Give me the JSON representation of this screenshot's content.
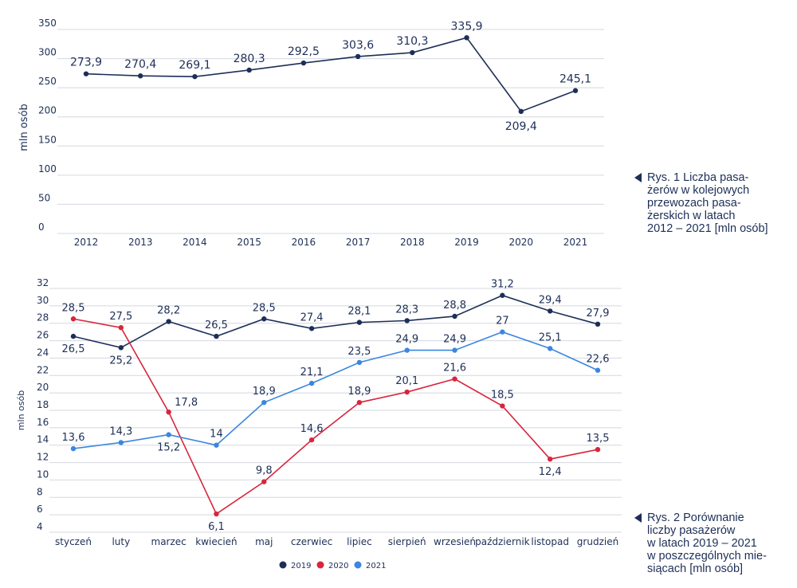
{
  "chart_data": [
    {
      "type": "line",
      "ylabel": "mln osób",
      "ylim": [
        0,
        350
      ],
      "yticks": [
        "0",
        "50",
        "100",
        "150",
        "200",
        "250",
        "300",
        "350"
      ],
      "grid": true,
      "categories": [
        "2012",
        "2013",
        "2014",
        "2015",
        "2016",
        "2017",
        "2018",
        "2019",
        "2020",
        "2021"
      ],
      "series": [
        {
          "values": [
            273.9,
            270.4,
            269.1,
            280.3,
            292.5,
            303.6,
            310.3,
            335.9,
            209.4,
            245.1
          ],
          "labels": [
            "273,9",
            "270,4",
            "269,1",
            "280,3",
            "292,5",
            "303,6",
            "310,3",
            "335,9",
            "209,4",
            "245,1"
          ],
          "color": "#1d2f57"
        }
      ],
      "caption": [
        "Rys. 1  Liczba pasa-",
        "żerów w kolejowych",
        "przewozach pasa-",
        "żerskich w latach",
        "2012 – 2021 [mln osób]"
      ]
    },
    {
      "type": "line",
      "ylabel": "mln osób",
      "ylim": [
        4,
        32
      ],
      "yticks": [
        "4",
        "6",
        "8",
        "10",
        "12",
        "14",
        "16",
        "18",
        "20",
        "22",
        "24",
        "26",
        "28",
        "30",
        "32"
      ],
      "grid": true,
      "legend_position": "bottom",
      "categories": [
        "styczeń",
        "luty",
        "marzec",
        "kwiecień",
        "maj",
        "czerwiec",
        "lipiec",
        "sierpień",
        "wrzesień",
        "październik",
        "listopad",
        "grudzień"
      ],
      "series": [
        {
          "name": "2019",
          "color": "#1d2f57",
          "values": [
            26.5,
            25.2,
            28.2,
            26.5,
            28.5,
            27.4,
            28.1,
            28.3,
            28.8,
            31.2,
            29.4,
            27.9
          ],
          "labels": [
            "26,5",
            "25,2",
            "28,2",
            "26,5",
            "28,5",
            "27,4",
            "28,1",
            "28,3",
            "28,8",
            "31,2",
            "29,4",
            "27,9"
          ]
        },
        {
          "name": "2020",
          "color": "#d7263d",
          "values": [
            28.5,
            27.5,
            17.8,
            6.1,
            9.8,
            14.6,
            18.9,
            20.1,
            21.6,
            18.5,
            12.4,
            13.5
          ],
          "labels": [
            "28,5",
            "27,5",
            "17,8",
            "6,1",
            "9,8",
            "14,6",
            "18,9",
            "20,1",
            "21,6",
            "18,5",
            "12,4",
            "13,5"
          ]
        },
        {
          "name": "2021",
          "color": "#3b86e0",
          "values": [
            13.6,
            14.3,
            15.2,
            14.0,
            18.9,
            21.1,
            23.5,
            24.9,
            24.9,
            27.0,
            25.1,
            22.6
          ],
          "labels": [
            "13,6",
            "14,3",
            "15,2",
            "14",
            "18,9",
            "21,1",
            "23,5",
            "24,9",
            "24,9",
            "27",
            "25,1",
            "22,6"
          ]
        }
      ],
      "caption": [
        "Rys. 2  Porównanie",
        "liczby pasażerów",
        "w latach 2019 – 2021",
        "w poszczególnych mie-",
        "siącach [mln osób]"
      ]
    }
  ]
}
